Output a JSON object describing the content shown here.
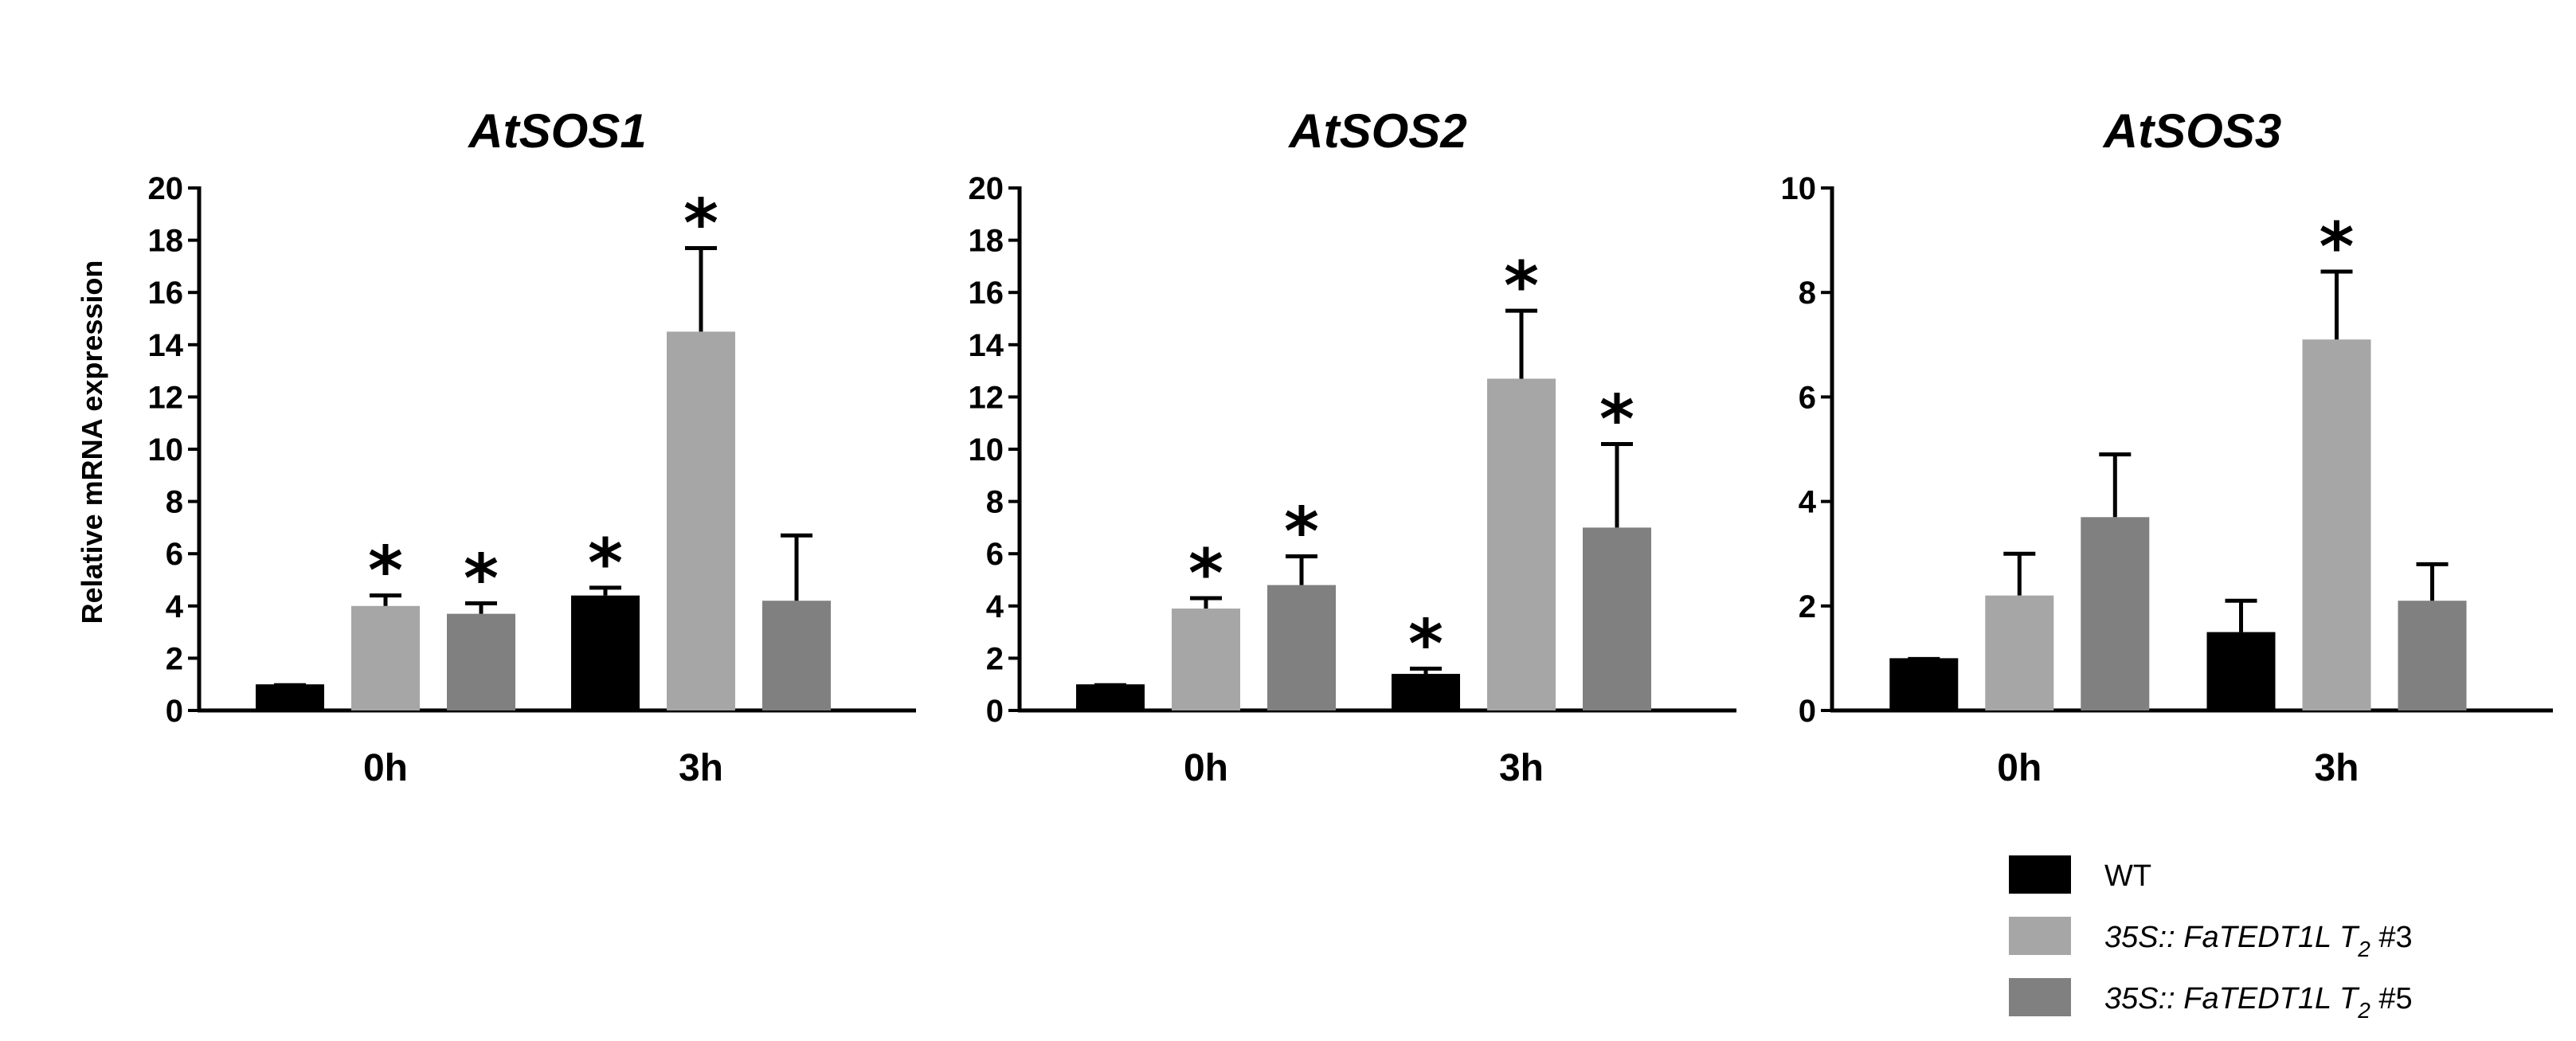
{
  "chart_data": {
    "type": "bar",
    "ylabel": "Relative mRNA expression",
    "legend": {
      "placement": "bottom-right",
      "entries": [
        {
          "label": "WT",
          "color": "#000000"
        },
        {
          "label_main": "35S:: FaTEDT1L T",
          "label_sub": "2",
          "label_tail": " #3",
          "color": "#a6a6a6"
        },
        {
          "label_main": "35S:: FaTEDT1L T",
          "label_sub": "2",
          "label_tail": " #5",
          "color": "#808080"
        }
      ]
    },
    "panels": [
      {
        "title": "AtSOS1",
        "categories": [
          "0h",
          "3h"
        ],
        "ylim": [
          0,
          20
        ],
        "yticks": [
          "0",
          "2",
          "4",
          "6",
          "8",
          "10",
          "12",
          "14",
          "16",
          "18",
          "20"
        ],
        "series": [
          {
            "values": [
              1.0,
              4.4
            ],
            "errors": [
              0.0,
              0.3
            ],
            "significant": [
              false,
              true
            ]
          },
          {
            "values": [
              4.0,
              14.5
            ],
            "errors": [
              0.4,
              3.2
            ],
            "significant": [
              true,
              true
            ]
          },
          {
            "values": [
              3.7,
              4.2
            ],
            "errors": [
              0.4,
              2.5
            ],
            "significant": [
              true,
              false
            ]
          }
        ]
      },
      {
        "title": "AtSOS2",
        "categories": [
          "0h",
          "3h"
        ],
        "ylim": [
          0,
          20
        ],
        "yticks": [
          "0",
          "2",
          "4",
          "6",
          "8",
          "10",
          "12",
          "14",
          "16",
          "18",
          "20"
        ],
        "series": [
          {
            "values": [
              1.0,
              1.4
            ],
            "errors": [
              0.0,
              0.2
            ],
            "significant": [
              false,
              true
            ]
          },
          {
            "values": [
              3.9,
              12.7
            ],
            "errors": [
              0.4,
              2.6
            ],
            "significant": [
              true,
              true
            ]
          },
          {
            "values": [
              4.8,
              7.0
            ],
            "errors": [
              1.1,
              3.2
            ],
            "significant": [
              true,
              true
            ]
          }
        ]
      },
      {
        "title": "AtSOS3",
        "categories": [
          "0h",
          "3h"
        ],
        "ylim": [
          0,
          10
        ],
        "yticks": [
          "0",
          "2",
          "4",
          "6",
          "8",
          "10"
        ],
        "series": [
          {
            "values": [
              1.0,
              1.5
            ],
            "errors": [
              0.0,
              0.6
            ],
            "significant": [
              false,
              false
            ]
          },
          {
            "values": [
              2.2,
              7.1
            ],
            "errors": [
              0.8,
              1.3
            ],
            "significant": [
              false,
              true
            ]
          },
          {
            "values": [
              3.7,
              2.1
            ],
            "errors": [
              1.2,
              0.7
            ],
            "significant": [
              false,
              false
            ]
          }
        ]
      }
    ]
  }
}
